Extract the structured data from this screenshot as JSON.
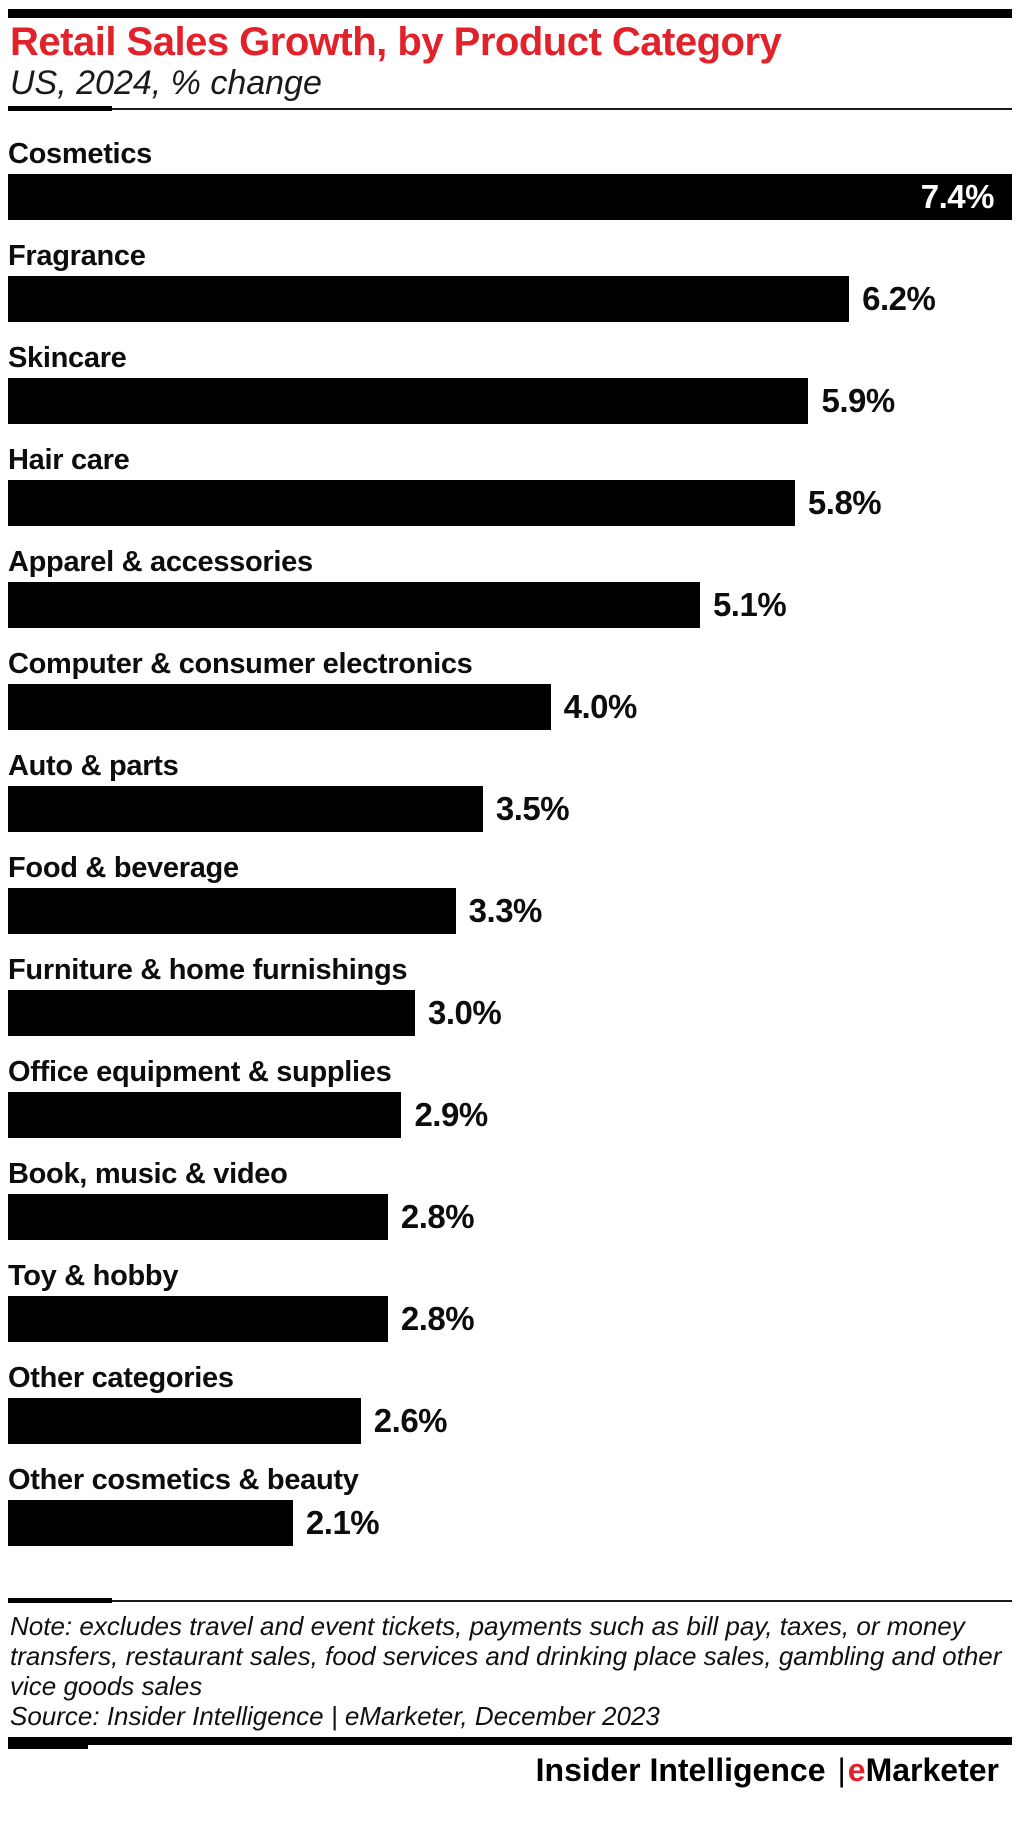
{
  "header": {
    "title": "Retail Sales Growth, by Product Category",
    "subtitle": "US, 2024, % change"
  },
  "colors": {
    "accent_red": "#e2222b",
    "bar_black": "#000000",
    "background": "#ffffff"
  },
  "chart_data": {
    "type": "bar",
    "orientation": "horizontal",
    "title": "Retail Sales Growth, by Product Category",
    "subtitle": "US, 2024, % change",
    "unit": "%",
    "categories": [
      "Cosmetics",
      "Fragrance",
      "Skincare",
      "Hair care",
      "Apparel & accessories",
      "Computer & consumer electronics",
      "Auto & parts",
      "Food & beverage",
      "Furniture & home furnishings",
      "Office equipment & supplies",
      "Book, music & video",
      "Toy & hobby",
      "Other categories",
      "Other cosmetics & beauty"
    ],
    "values": [
      7.4,
      6.2,
      5.9,
      5.8,
      5.1,
      4.0,
      3.5,
      3.3,
      3.0,
      2.9,
      2.8,
      2.8,
      2.6,
      2.1
    ],
    "labels": [
      "7.4%",
      "6.2%",
      "5.9%",
      "5.8%",
      "5.1%",
      "4.0%",
      "3.5%",
      "3.3%",
      "3.0%",
      "2.9%",
      "2.8%",
      "2.8%",
      "2.6%",
      "2.1%"
    ],
    "xlim": [
      0,
      7.4
    ],
    "grid": false,
    "legend": false,
    "bar_color": "#000000",
    "value_label_style": "first bar: white label inside right edge; other bars: black label to the right of bar"
  },
  "footnote": {
    "note_lines": [
      "Note: excludes travel and event tickets, payments such as bill pay, taxes, or money",
      "transfers, restaurant sales, food services and drinking place sales, gambling and other",
      "vice goods sales"
    ],
    "source": "Source: Insider Intelligence | eMarketer, December 2023"
  },
  "footer": {
    "brand_left": "Insider Intelligence",
    "separator": "|",
    "brand_e": "e",
    "brand_rest": "Marketer"
  }
}
